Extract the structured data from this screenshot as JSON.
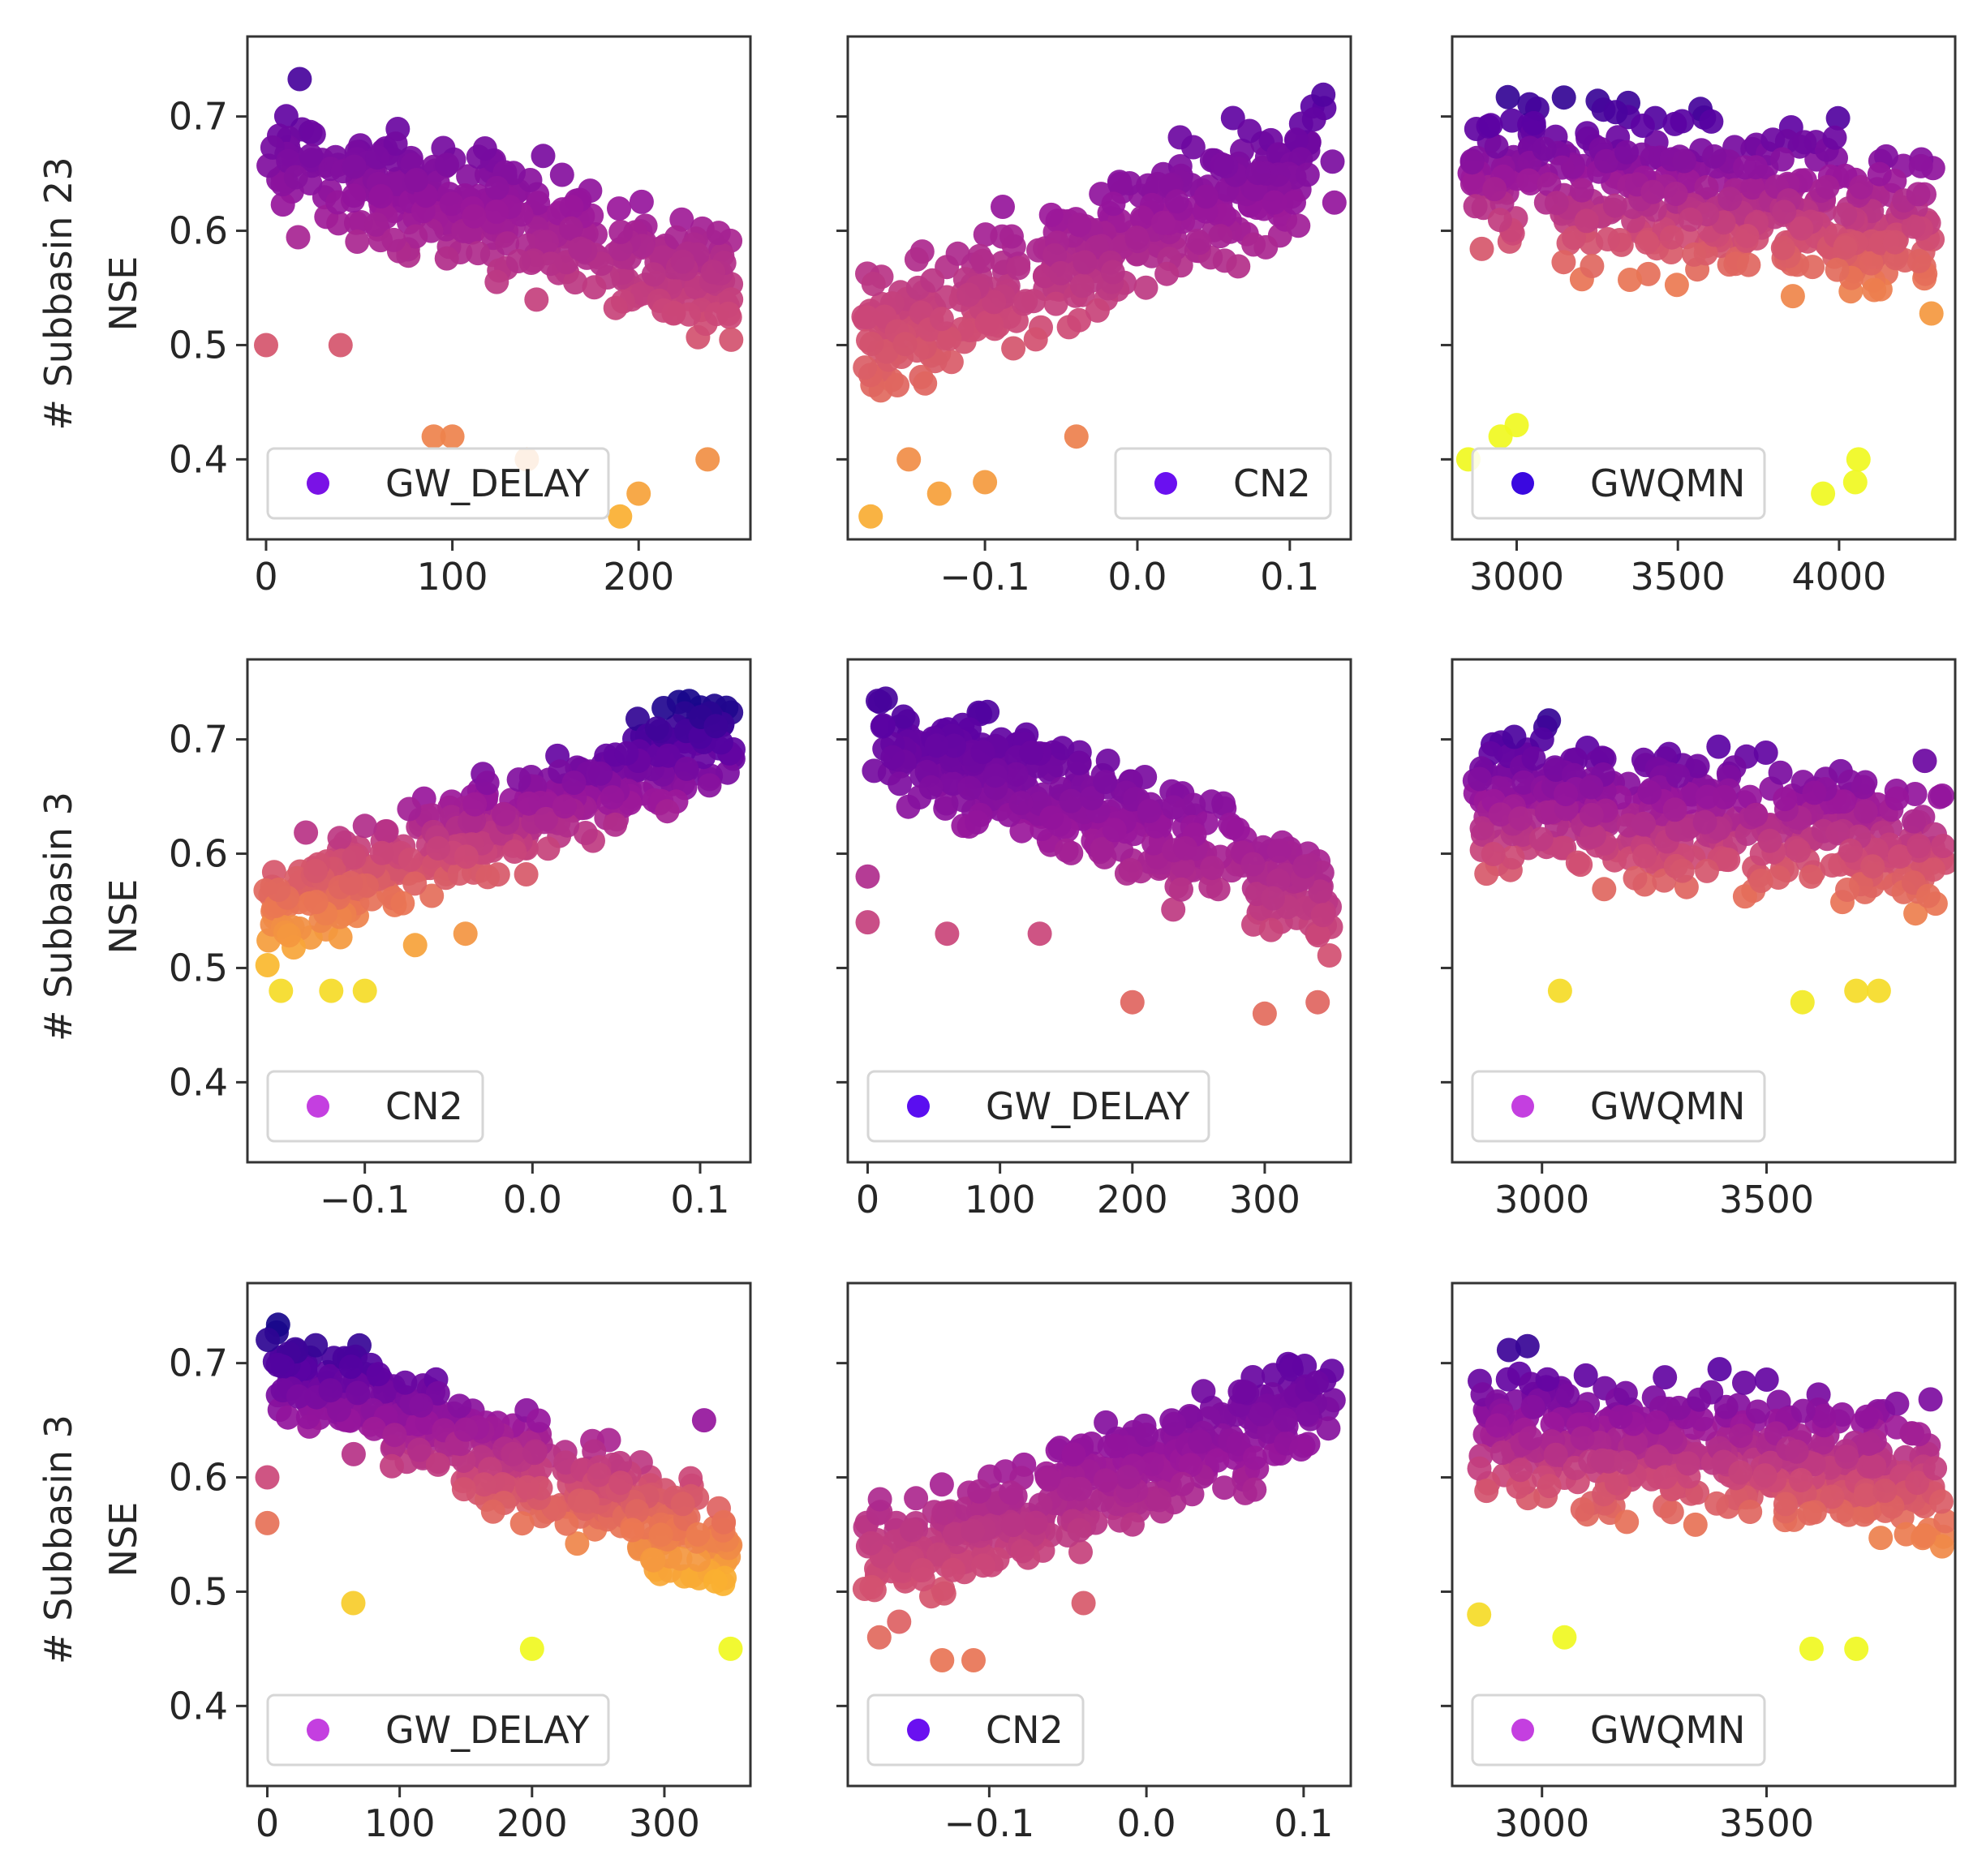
{
  "figure": {
    "row_labels": [
      "# Subbasin 23",
      "# Subbasin 3",
      "# Subbasin 3"
    ],
    "ylabel": "NSE",
    "colormap": [
      "#0d0887",
      "#5b02a3",
      "#9a179b",
      "#cb4678",
      "#eb7852",
      "#fbb32f",
      "#f0f921"
    ]
  },
  "chart_data": [
    {
      "type": "scatter",
      "row": 0,
      "col": 0,
      "legend": "GW_DELAY",
      "legend_color": "#7a12e6",
      "xticks": [
        "0",
        "100",
        "200"
      ],
      "xtick_values": [
        0,
        100,
        200
      ],
      "xlim": [
        -10,
        260
      ],
      "yticks": [
        "0.7",
        "0.6",
        "0.5",
        "0.4"
      ],
      "ytick_values": [
        0.7,
        0.6,
        0.5,
        0.4
      ],
      "ylim": [
        0.33,
        0.77
      ],
      "colorize": "ramp_gw",
      "trend": {
        "x": [
          0,
          250
        ],
        "y": [
          0.67,
          0.55
        ]
      },
      "outliers": [
        [
          0,
          0.5
        ],
        [
          40,
          0.5
        ],
        [
          90,
          0.42
        ],
        [
          140,
          0.4
        ],
        [
          190,
          0.35
        ],
        [
          200,
          0.37
        ],
        [
          237,
          0.4
        ],
        [
          100,
          0.42
        ]
      ],
      "n": 360,
      "seed": 11,
      "spread": 0.075
    },
    {
      "type": "scatter",
      "row": 0,
      "col": 1,
      "legend": "CN2",
      "legend_color": "#6a10f0",
      "xticks": [
        "−0.1",
        "0.0",
        "0.1"
      ],
      "xtick_values": [
        -0.1,
        0.0,
        0.1
      ],
      "xlim": [
        -0.19,
        0.14
      ],
      "yticks": [],
      "ytick_values": [
        0.7,
        0.6,
        0.5,
        0.4
      ],
      "ylim": [
        0.33,
        0.77
      ],
      "colorize": "ramp_cn",
      "trend": {
        "x": [
          -0.18,
          0.13
        ],
        "y": [
          0.5,
          0.67
        ]
      },
      "outliers": [
        [
          -0.175,
          0.35
        ],
        [
          -0.13,
          0.37
        ],
        [
          -0.1,
          0.38
        ],
        [
          -0.04,
          0.42
        ],
        [
          -0.15,
          0.4
        ]
      ],
      "n": 360,
      "seed": 23,
      "spread": 0.08
    },
    {
      "type": "scatter",
      "row": 0,
      "col": 2,
      "legend": "GWQMN",
      "legend_color": "#3a08e0",
      "xticks": [
        "3000",
        "3500",
        "4000"
      ],
      "xtick_values": [
        3000,
        3500,
        4000
      ],
      "xlim": [
        2800,
        4360
      ],
      "yticks": [],
      "ytick_values": [
        0.7,
        0.6,
        0.5,
        0.4
      ],
      "ylim": [
        0.33,
        0.77
      ],
      "colorize": "full_ramp",
      "trend": {
        "x": [
          2850,
          4300
        ],
        "y": [
          0.66,
          0.6
        ]
      },
      "outliers": [
        [
          2850,
          0.4
        ],
        [
          3950,
          0.37
        ],
        [
          4050,
          0.38
        ],
        [
          4060,
          0.4
        ],
        [
          2950,
          0.42
        ],
        [
          3000,
          0.43
        ]
      ],
      "n": 420,
      "seed": 37,
      "spread": 0.1
    },
    {
      "type": "scatter",
      "row": 1,
      "col": 0,
      "legend": "CN2",
      "legend_color": "#c43fe0",
      "xticks": [
        "−0.1",
        "0.0",
        "0.1"
      ],
      "xtick_values": [
        -0.1,
        0.0,
        0.1
      ],
      "xlim": [
        -0.17,
        0.13
      ],
      "yticks": [
        "0.7",
        "0.6",
        "0.5",
        "0.4"
      ],
      "ytick_values": [
        0.7,
        0.6,
        0.5,
        0.4
      ],
      "ylim": [
        0.33,
        0.77
      ],
      "colorize": "full_ramp",
      "trend": {
        "x": [
          -0.16,
          0.12
        ],
        "y": [
          0.55,
          0.7
        ]
      },
      "outliers": [
        [
          -0.15,
          0.48
        ],
        [
          -0.12,
          0.48
        ],
        [
          -0.1,
          0.48
        ],
        [
          -0.04,
          0.53
        ],
        [
          -0.07,
          0.52
        ]
      ],
      "n": 400,
      "seed": 41,
      "spread": 0.06
    },
    {
      "type": "scatter",
      "row": 1,
      "col": 1,
      "legend": "GW_DELAY",
      "legend_color": "#5a0ef0",
      "xticks": [
        "0",
        "100",
        "200",
        "300"
      ],
      "xtick_values": [
        0,
        100,
        200,
        300
      ],
      "xlim": [
        -15,
        365
      ],
      "yticks": [],
      "ytick_values": [
        0.7,
        0.6,
        0.5,
        0.4
      ],
      "ylim": [
        0.33,
        0.77
      ],
      "colorize": "ramp_gw",
      "trend": {
        "x": [
          0,
          350
        ],
        "y": [
          0.71,
          0.56
        ]
      },
      "outliers": [
        [
          0,
          0.54
        ],
        [
          0,
          0.58
        ],
        [
          60,
          0.53
        ],
        [
          130,
          0.53
        ],
        [
          200,
          0.47
        ],
        [
          300,
          0.46
        ],
        [
          340,
          0.47
        ]
      ],
      "n": 380,
      "seed": 53,
      "spread": 0.07
    },
    {
      "type": "scatter",
      "row": 1,
      "col": 2,
      "legend": "GWQMN",
      "legend_color": "#c43fe0",
      "xticks": [
        "3000",
        "3500"
      ],
      "xtick_values": [
        3000,
        3500
      ],
      "xlim": [
        2800,
        3920
      ],
      "yticks": [],
      "ytick_values": [
        0.7,
        0.6,
        0.5,
        0.4
      ],
      "ylim": [
        0.33,
        0.77
      ],
      "colorize": "full_ramp",
      "trend": {
        "x": [
          2850,
          3900
        ],
        "y": [
          0.65,
          0.61
        ]
      },
      "outliers": [
        [
          3040,
          0.48
        ],
        [
          3580,
          0.47
        ],
        [
          3750,
          0.48
        ],
        [
          3700,
          0.48
        ]
      ],
      "n": 420,
      "seed": 67,
      "spread": 0.085
    },
    {
      "type": "scatter",
      "row": 2,
      "col": 0,
      "legend": "GW_DELAY",
      "legend_color": "#c43fe0",
      "xticks": [
        "0",
        "100",
        "200",
        "300"
      ],
      "xtick_values": [
        0,
        100,
        200,
        300
      ],
      "xlim": [
        -15,
        365
      ],
      "yticks": [
        "0.7",
        "0.6",
        "0.5",
        "0.4"
      ],
      "ytick_values": [
        0.7,
        0.6,
        0.5,
        0.4
      ],
      "ylim": [
        0.33,
        0.77
      ],
      "colorize": "full_ramp",
      "trend": {
        "x": [
          0,
          350
        ],
        "y": [
          0.7,
          0.54
        ]
      },
      "outliers": [
        [
          0,
          0.56
        ],
        [
          0,
          0.6
        ],
        [
          65,
          0.49
        ],
        [
          200,
          0.45
        ],
        [
          350,
          0.45
        ],
        [
          330,
          0.65
        ]
      ],
      "n": 400,
      "seed": 79,
      "spread": 0.065
    },
    {
      "type": "scatter",
      "row": 2,
      "col": 1,
      "legend": "CN2",
      "legend_color": "#6a10f0",
      "xticks": [
        "−0.1",
        "0.0",
        "0.1"
      ],
      "xtick_values": [
        -0.1,
        0.0,
        0.1
      ],
      "xlim": [
        -0.19,
        0.13
      ],
      "yticks": [],
      "ytick_values": [
        0.7,
        0.6,
        0.5,
        0.4
      ],
      "ylim": [
        0.33,
        0.77
      ],
      "colorize": "ramp_cn",
      "trend": {
        "x": [
          -0.18,
          0.12
        ],
        "y": [
          0.52,
          0.67
        ]
      },
      "outliers": [
        [
          -0.13,
          0.44
        ],
        [
          -0.11,
          0.44
        ],
        [
          -0.04,
          0.49
        ],
        [
          -0.17,
          0.46
        ]
      ],
      "n": 380,
      "seed": 91,
      "spread": 0.07
    },
    {
      "type": "scatter",
      "row": 2,
      "col": 2,
      "legend": "GWQMN",
      "legend_color": "#c43fe0",
      "xticks": [
        "3000",
        "3500"
      ],
      "xtick_values": [
        3000,
        3500
      ],
      "xlim": [
        2800,
        3920
      ],
      "yticks": [],
      "ytick_values": [
        0.7,
        0.6,
        0.5,
        0.4
      ],
      "ylim": [
        0.33,
        0.77
      ],
      "colorize": "full_ramp",
      "trend": {
        "x": [
          2850,
          3900
        ],
        "y": [
          0.64,
          0.6
        ]
      },
      "outliers": [
        [
          3050,
          0.46
        ],
        [
          3600,
          0.45
        ],
        [
          3700,
          0.45
        ],
        [
          2860,
          0.48
        ]
      ],
      "n": 420,
      "seed": 103,
      "spread": 0.085
    }
  ]
}
